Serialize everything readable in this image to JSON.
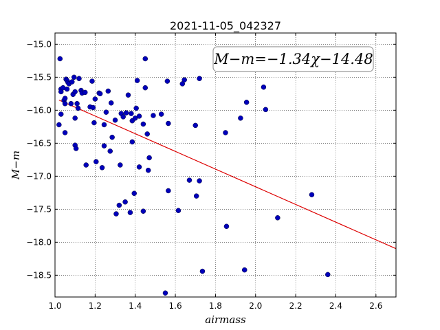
{
  "chart_data": {
    "type": "scatter",
    "title": "2021-11-05_042327",
    "xlabel": "airmass",
    "ylabel": "M−m",
    "xlim": [
      1.0,
      2.7
    ],
    "ylim": [
      -18.83,
      -14.83
    ],
    "y_inverted": true,
    "x_ticks": [
      1.0,
      1.2,
      1.4,
      1.6,
      1.8,
      2.0,
      2.2,
      2.4,
      2.6
    ],
    "x_tick_labels": [
      "1.0",
      "1.2",
      "1.4",
      "1.6",
      "1.8",
      "2.0",
      "2.2",
      "2.4",
      "2.6"
    ],
    "y_ticks": [
      -15.0,
      -15.5,
      -16.0,
      -16.5,
      -17.0,
      -17.5,
      -18.0,
      -18.5
    ],
    "y_tick_labels": [
      "−15.0",
      "−15.5",
      "−16.0",
      "−16.5",
      "−17.0",
      "−17.5",
      "−18.0",
      "−18.5"
    ],
    "grid": true,
    "annotation": "M−m=−1.34χ−14.48",
    "fit": {
      "slope": -1.34,
      "intercept": -14.48,
      "x_range": [
        1.02,
        2.7
      ],
      "color": "#dd0000"
    },
    "point_color": "#0000bb",
    "points": [
      [
        1.025,
        -15.22
      ],
      [
        1.02,
        -16.22
      ],
      [
        1.03,
        -16.06
      ],
      [
        1.03,
        -15.68
      ],
      [
        1.03,
        -15.72
      ],
      [
        1.04,
        -15.66
      ],
      [
        1.045,
        -15.85
      ],
      [
        1.05,
        -15.9
      ],
      [
        1.05,
        -15.82
      ],
      [
        1.055,
        -15.53
      ],
      [
        1.06,
        -15.55
      ],
      [
        1.065,
        -15.58
      ],
      [
        1.07,
        -15.6
      ],
      [
        1.05,
        -16.34
      ],
      [
        1.06,
        -15.68
      ],
      [
        1.08,
        -15.9
      ],
      [
        1.085,
        -15.57
      ],
      [
        1.09,
        -15.76
      ],
      [
        1.095,
        -15.5
      ],
      [
        1.1,
        -15.72
      ],
      [
        1.1,
        -16.12
      ],
      [
        1.1,
        -16.53
      ],
      [
        1.105,
        -16.58
      ],
      [
        1.11,
        -15.9
      ],
      [
        1.115,
        -15.97
      ],
      [
        1.12,
        -15.52
      ],
      [
        1.13,
        -15.7
      ],
      [
        1.135,
        -15.74
      ],
      [
        1.15,
        -15.73
      ],
      [
        1.155,
        -16.83
      ],
      [
        1.175,
        -15.95
      ],
      [
        1.185,
        -15.56
      ],
      [
        1.19,
        -15.96
      ],
      [
        1.195,
        -16.19
      ],
      [
        1.2,
        -15.83
      ],
      [
        1.205,
        -16.78
      ],
      [
        1.22,
        -15.74
      ],
      [
        1.225,
        -15.75
      ],
      [
        1.235,
        -16.87
      ],
      [
        1.245,
        -16.54
      ],
      [
        1.245,
        -16.22
      ],
      [
        1.255,
        -16.03
      ],
      [
        1.265,
        -15.71
      ],
      [
        1.275,
        -16.62
      ],
      [
        1.28,
        -15.89
      ],
      [
        1.285,
        -16.41
      ],
      [
        1.3,
        -16.15
      ],
      [
        1.305,
        -17.57
      ],
      [
        1.32,
        -17.44
      ],
      [
        1.325,
        -16.83
      ],
      [
        1.33,
        -16.05
      ],
      [
        1.34,
        -16.1
      ],
      [
        1.35,
        -17.39
      ],
      [
        1.355,
        -16.04
      ],
      [
        1.365,
        -15.77
      ],
      [
        1.375,
        -17.55
      ],
      [
        1.38,
        -16.05
      ],
      [
        1.385,
        -16.16
      ],
      [
        1.385,
        -16.48
      ],
      [
        1.395,
        -17.26
      ],
      [
        1.4,
        -16.12
      ],
      [
        1.405,
        -15.97
      ],
      [
        1.41,
        -15.55
      ],
      [
        1.42,
        -16.86
      ],
      [
        1.42,
        -16.09
      ],
      [
        1.44,
        -16.21
      ],
      [
        1.44,
        -17.53
      ],
      [
        1.45,
        -15.22
      ],
      [
        1.45,
        -15.66
      ],
      [
        1.46,
        -16.36
      ],
      [
        1.465,
        -16.91
      ],
      [
        1.47,
        -16.72
      ],
      [
        1.49,
        -16.08
      ],
      [
        1.53,
        -16.06
      ],
      [
        1.55,
        -18.77
      ],
      [
        1.56,
        -15.56
      ],
      [
        1.565,
        -16.2
      ],
      [
        1.565,
        -17.22
      ],
      [
        1.615,
        -17.52
      ],
      [
        1.635,
        -15.6
      ],
      [
        1.645,
        -15.54
      ],
      [
        1.67,
        -17.06
      ],
      [
        1.7,
        -16.23
      ],
      [
        1.705,
        -17.3
      ],
      [
        1.72,
        -15.52
      ],
      [
        1.72,
        -17.07
      ],
      [
        1.735,
        -18.44
      ],
      [
        1.85,
        -16.34
      ],
      [
        1.855,
        -17.76
      ],
      [
        1.925,
        -16.12
      ],
      [
        1.945,
        -18.42
      ],
      [
        1.955,
        -15.88
      ],
      [
        2.04,
        -15.65
      ],
      [
        2.05,
        -15.99
      ],
      [
        2.11,
        -17.63
      ],
      [
        2.28,
        -17.28
      ],
      [
        2.36,
        -18.49
      ]
    ]
  }
}
